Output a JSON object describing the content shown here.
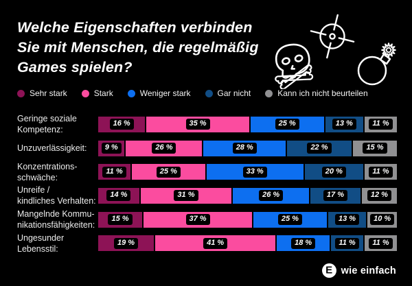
{
  "header": {
    "title": "Welche Eigenschaften verbinden\nSie mit Menschen, die regelmäßig\nGames spielen?",
    "icons": [
      "crosshair-icon",
      "skull-crossbones-icon",
      "bomb-icon"
    ]
  },
  "colors": {
    "background": "#000000",
    "sehr_stark": "#8d1356",
    "stark": "#fb4c9f",
    "weniger_stark": "#0d6ff0",
    "gar_nicht": "#114d85",
    "kann_ich_nicht_beurteilen": "#909092",
    "value_label_bg": "#000000",
    "text": "#ffffff"
  },
  "chart_data": {
    "type": "bar",
    "stacked": true,
    "orientation": "horizontal",
    "title": "Welche Eigenschaften verbinden Sie mit Menschen, die regelmäßig Games spielen?",
    "xlim": [
      0,
      100
    ],
    "unit": "%",
    "value_label_format": "{value} %",
    "legend_position": "top",
    "categories": [
      {
        "label": "Geringe soziale Kompetenz:",
        "lines": "Geringe soziale\nKompetenz:"
      },
      {
        "label": "Unzuverlässigkeit:",
        "lines": "Unzuverlässigkeit:"
      },
      {
        "label": "Konzentrationsschwäche:",
        "lines": "Konzentrations-\nschwäche:"
      },
      {
        "label": "Unreife / kindliches Verhalten:",
        "lines": "Unreife /\nkindliches Verhalten:"
      },
      {
        "label": "Mangelnde Kommunikationsfähigkeiten:",
        "lines": "Mangelnde Kommu-\nnikationsfähigkeiten:"
      },
      {
        "label": "Ungesunder Lebensstil:",
        "lines": "Ungesunder\nLebensstil:"
      }
    ],
    "series": [
      {
        "name": "Sehr stark",
        "color": "#8d1356",
        "values": [
          16,
          9,
          11,
          14,
          15,
          19
        ]
      },
      {
        "name": "Stark",
        "color": "#fb4c9f",
        "values": [
          35,
          26,
          25,
          31,
          37,
          41
        ]
      },
      {
        "name": "Weniger stark",
        "color": "#0d6ff0",
        "values": [
          25,
          28,
          33,
          26,
          25,
          18
        ]
      },
      {
        "name": "Gar nicht",
        "color": "#114d85",
        "values": [
          13,
          22,
          20,
          17,
          13,
          11
        ]
      },
      {
        "name": "Kann ich nicht beurteilen",
        "color": "#909092",
        "values": [
          11,
          15,
          11,
          12,
          10,
          11
        ]
      }
    ]
  },
  "footer": {
    "logo_symbol": "E",
    "logo_text": "wie einfach"
  }
}
